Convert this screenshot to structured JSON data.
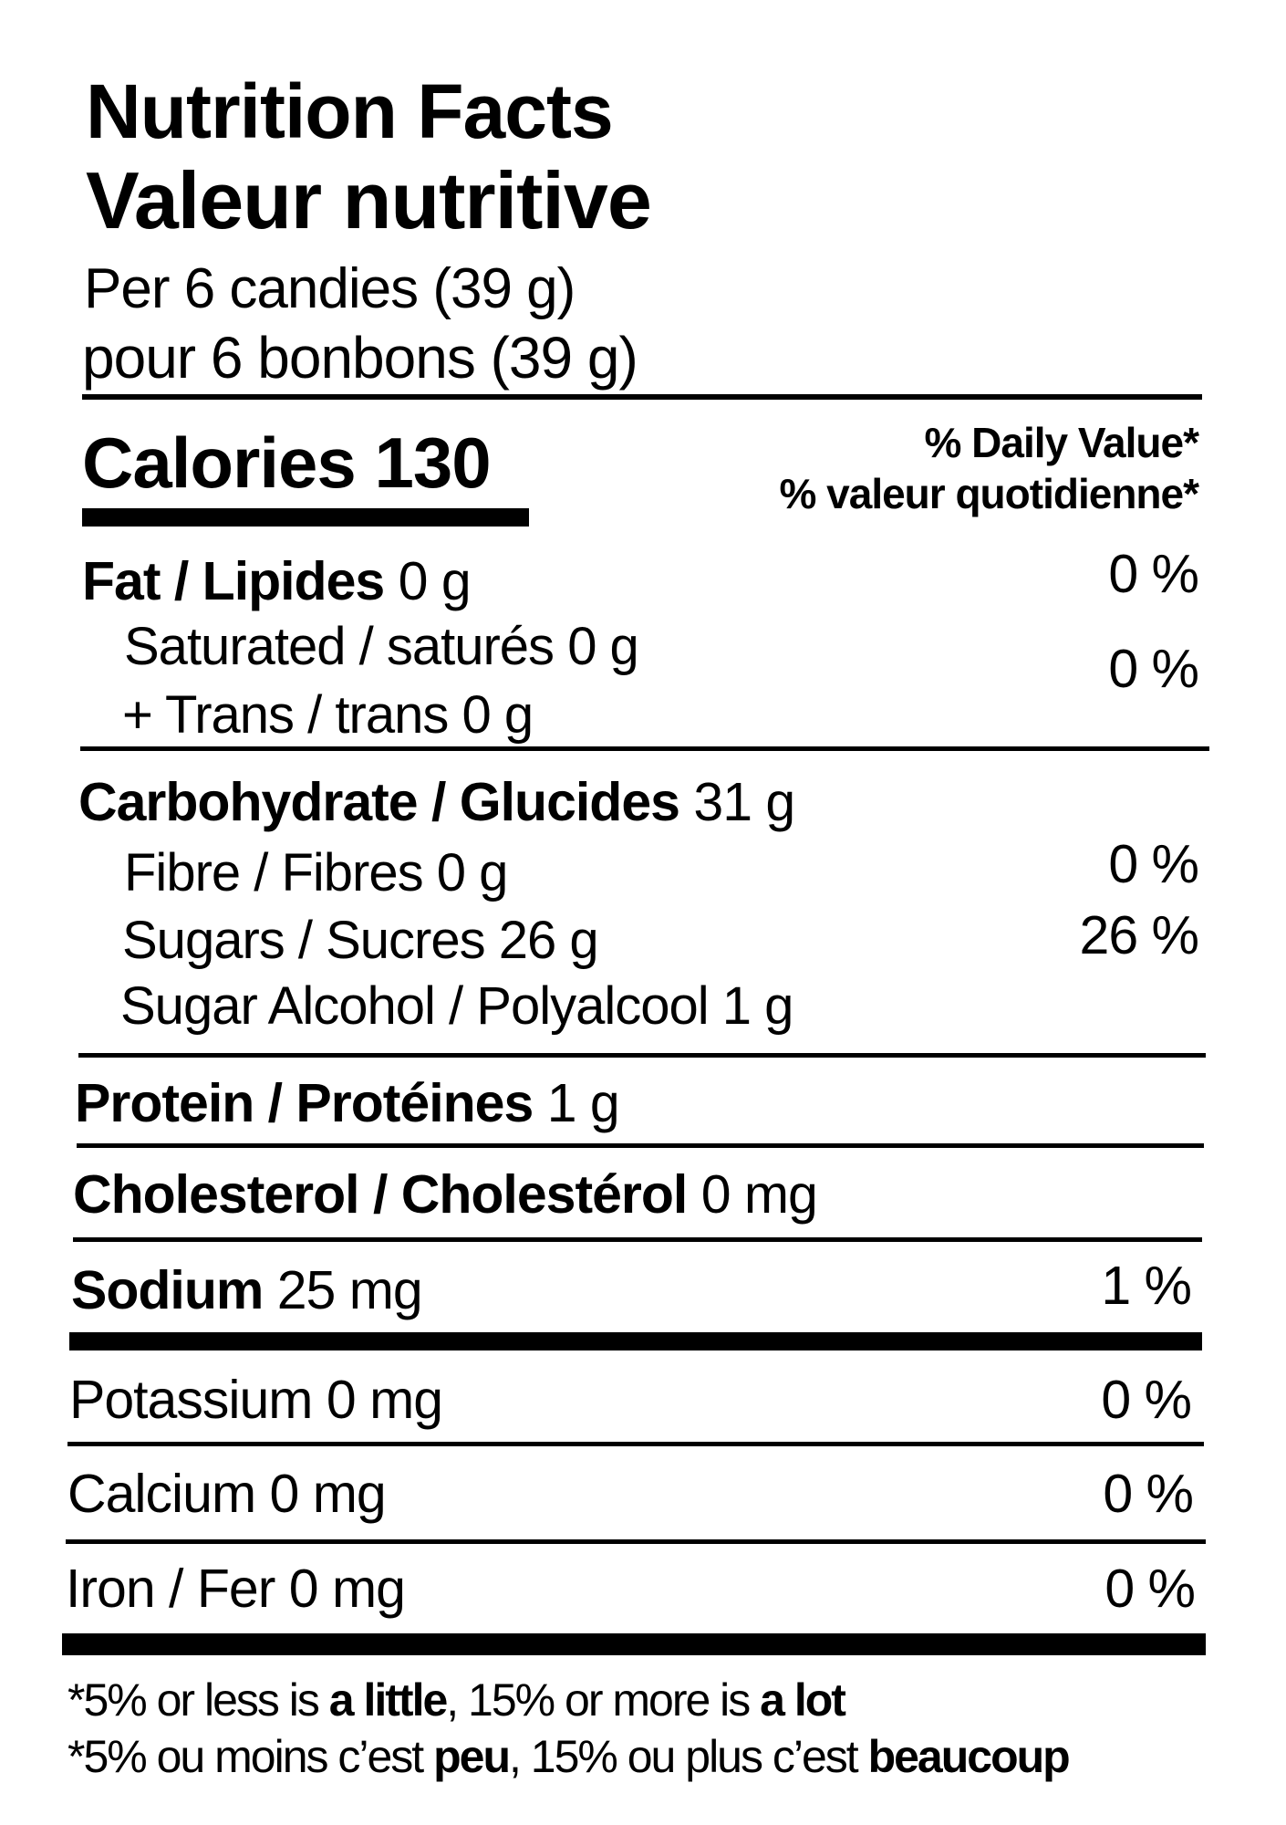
{
  "title_en": "Nutrition Facts",
  "title_fr": "Valeur nutritive",
  "serving_en": "Per 6 candies (39 g)",
  "serving_fr": "pour 6 bonbons (39 g)",
  "calories_label": "Calories",
  "calories_value": "130",
  "dv_header_en": "% Daily Value*",
  "dv_header_fr": "% valeur quotidienne*",
  "nutrients": {
    "fat": {
      "label": "Fat / Lipides",
      "amount": "0 g",
      "dv": "0 %"
    },
    "saturated": {
      "label": "Saturated / saturés",
      "amount": "0 g"
    },
    "trans": {
      "label": "+ Trans / trans",
      "amount": "0 g",
      "dv": "0 %"
    },
    "carbohydrate": {
      "label": "Carbohydrate / Glucides",
      "amount": "31 g"
    },
    "fibre": {
      "label": "Fibre / Fibres",
      "amount": "0 g",
      "dv": "0 %"
    },
    "sugars": {
      "label": "Sugars / Sucres",
      "amount": "26 g",
      "dv": "26 %"
    },
    "sugar_alcohol": {
      "label": "Sugar Alcohol / Polyalcool",
      "amount": "1 g"
    },
    "protein": {
      "label": "Protein / Protéines",
      "amount": "1 g"
    },
    "cholesterol": {
      "label": "Cholesterol / Cholestérol",
      "amount": "0 mg"
    },
    "sodium": {
      "label": "Sodium",
      "amount": "25 mg",
      "dv": "1 %"
    },
    "potassium": {
      "label": "Potassium",
      "amount": "0 mg",
      "dv": "0 %"
    },
    "calcium": {
      "label": "Calcium",
      "amount": "0 mg",
      "dv": "0 %"
    },
    "iron": {
      "label": "Iron / Fer",
      "amount": "0 mg",
      "dv": "0 %"
    }
  },
  "footnote_en": {
    "a": "*5% or less is ",
    "b": "a little",
    "c": ", 15% or more is ",
    "d": "a lot"
  },
  "footnote_fr": {
    "a": "*5% ou moins c’est ",
    "b": "peu",
    "c": ", 15% ou plus c’est ",
    "d": "beaucoup"
  }
}
